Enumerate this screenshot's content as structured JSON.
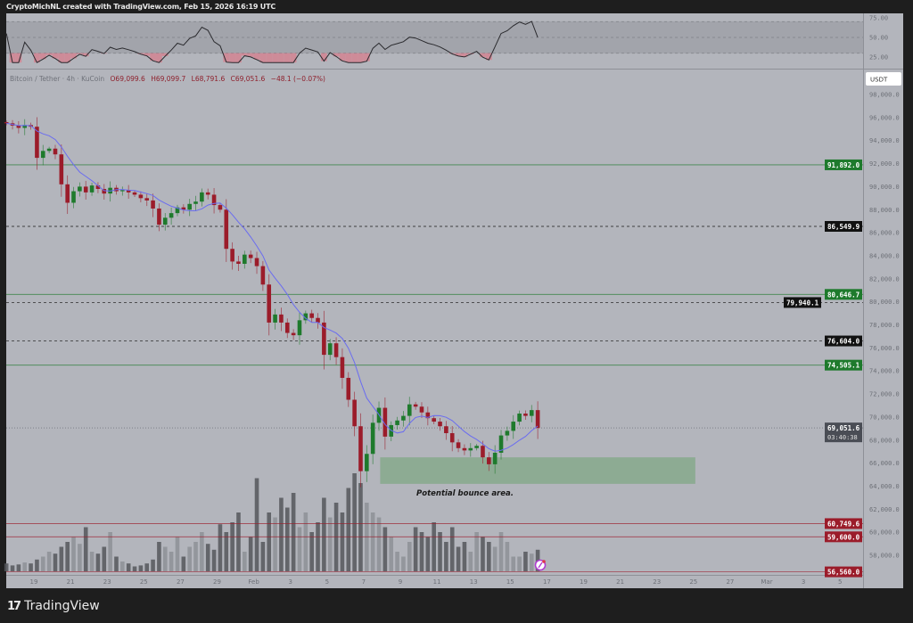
{
  "header": {
    "text": "CryptoMichNL created with TradingView.com, Feb 15, 2026 16:19 UTC"
  },
  "legend": {
    "symbol": "Bitcoin / Tether · 4h · KuCoin",
    "open": "O69,099.6",
    "high": "H69,099.7",
    "low": "L68,791.6",
    "close": "C69,051.6",
    "change": "−48.1 (−0.07%)"
  },
  "currency_label": "USDT",
  "footer": {
    "brand": "TradingView"
  },
  "colors": {
    "background": "#b3b5bc",
    "up": "#1e7a2c",
    "down": "#9b1c2a",
    "ma": "#6a6cf0",
    "support_zone": "#86a98c",
    "green_level": "#1e7a2c",
    "red_level": "#9b1c2a",
    "black_level": "#111111"
  },
  "chart_data": {
    "type": "candlestick",
    "title": "",
    "timeframe": "4h",
    "x_ticks": [
      "19",
      "21",
      "23",
      "25",
      "27",
      "29",
      "Feb",
      "3",
      "5",
      "7",
      "9",
      "11",
      "13",
      "15",
      "17",
      "19",
      "21",
      "23",
      "25",
      "27",
      "Mar",
      "3",
      "5"
    ],
    "y_ticks": [
      "98,000.0",
      "96,000.0",
      "94,000.0",
      "92,000.0",
      "90,000.0",
      "88,000.0",
      "86,000.0",
      "84,000.0",
      "82,000.0",
      "80,000.0",
      "78,000.0",
      "76,000.0",
      "74,000.0",
      "72,000.0",
      "70,000.0",
      "68,000.0",
      "66,000.0",
      "64,000.0",
      "62,000.0",
      "60,000.0",
      "58,000.0"
    ],
    "ylim": [
      56000,
      99000
    ],
    "closes": [
      95500,
      95300,
      95100,
      95350,
      95200,
      92500,
      93100,
      93300,
      92800,
      90200,
      88600,
      89600,
      90000,
      89500,
      90100,
      89800,
      89400,
      89900,
      89600,
      89700,
      89500,
      89300,
      89000,
      88800,
      88100,
      86700,
      87300,
      87700,
      88200,
      88000,
      88500,
      88700,
      89500,
      89300,
      88400,
      88000,
      84600,
      83500,
      83300,
      84100,
      83800,
      83100,
      81500,
      78200,
      78900,
      78200,
      77300,
      77100,
      78400,
      79000,
      78600,
      78200,
      75400,
      76400,
      75200,
      73400,
      71500,
      69200,
      65300,
      66800,
      69500,
      70800,
      68300,
      69300,
      69700,
      70100,
      71100,
      70900,
      70400,
      69900,
      69600,
      69200,
      68600,
      67800,
      67300,
      67100,
      67300,
      67500,
      66500,
      65900,
      66900,
      68400,
      68800,
      69600,
      70300,
      70100,
      70600,
      69051.6
    ],
    "volume_relative": [
      8,
      6,
      7,
      9,
      8,
      12,
      15,
      20,
      18,
      25,
      30,
      35,
      28,
      45,
      20,
      18,
      25,
      40,
      15,
      10,
      8,
      5,
      6,
      8,
      12,
      30,
      25,
      20,
      35,
      15,
      25,
      30,
      40,
      28,
      22,
      48,
      40,
      50,
      60,
      20,
      35,
      95,
      30,
      60,
      55,
      75,
      65,
      80,
      45,
      60,
      40,
      50,
      75,
      55,
      70,
      60,
      85,
      100,
      90,
      70,
      60,
      55,
      45,
      35,
      20,
      15,
      30,
      45,
      40,
      35,
      50,
      40,
      30,
      45,
      25,
      30,
      20,
      40,
      35,
      30,
      25,
      40,
      30,
      15,
      15,
      20,
      18,
      22
    ],
    "levels": [
      {
        "price": 91892.0,
        "label": "91,892.0",
        "style": "solid",
        "color": "green"
      },
      {
        "price": 86549.9,
        "label": "86,549.9",
        "style": "dashed",
        "color": "black"
      },
      {
        "price": 80646.7,
        "label": "80,646.7",
        "style": "solid",
        "color": "green"
      },
      {
        "price": 79940.1,
        "label": "79,940.1",
        "style": "dashed",
        "color": "black"
      },
      {
        "price": 76604.0,
        "label": "76,604.0",
        "style": "dashed",
        "color": "black"
      },
      {
        "price": 74505.1,
        "label": "74,505.1",
        "style": "solid",
        "color": "green"
      },
      {
        "price": 60749.6,
        "label": "60,749.6",
        "style": "solid",
        "color": "red"
      },
      {
        "price": 59600.0,
        "label": "59,600.0",
        "style": "solid",
        "color": "red"
      },
      {
        "price": 56560.0,
        "label": "56,560.0",
        "style": "solid",
        "color": "red"
      }
    ],
    "last_price": {
      "price": 69051.6,
      "label": "69,051.6",
      "countdown": "03:40:38"
    },
    "zone": {
      "price_top": 66500,
      "price_bottom": 64200,
      "from": "Feb 7",
      "to": "Feb 24",
      "label": "Potential bounce area."
    },
    "rsi": {
      "ticks": [
        "75.00",
        "50.00",
        "25.00"
      ],
      "band": [
        30,
        70
      ]
    }
  }
}
